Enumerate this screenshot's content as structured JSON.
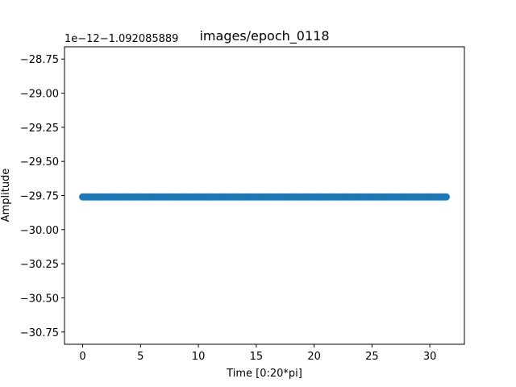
{
  "chart_data": {
    "type": "scatter",
    "title": "images/epoch_0118",
    "xlabel": "Time [0:20*pi]",
    "ylabel": "Amplitude",
    "offset_text": "1e−12−1.092085889",
    "xlim": [
      -1.571,
      32.987
    ],
    "ylim": [
      -30.84,
      -28.66
    ],
    "x_ticks": [
      0,
      5,
      10,
      15,
      20,
      25,
      30
    ],
    "x_tick_labels": [
      "0",
      "5",
      "10",
      "15",
      "20",
      "25",
      "30"
    ],
    "y_ticks": [
      -28.75,
      -29.0,
      -29.25,
      -29.5,
      -29.75,
      -30.0,
      -30.25,
      -30.5,
      -30.75
    ],
    "y_tick_labels": [
      "−28.75",
      "−29.00",
      "−29.25",
      "−29.50",
      "−29.75",
      "−30.00",
      "−30.25",
      "−30.50",
      "−30.75"
    ],
    "grid": false,
    "series": [
      {
        "color": "#1f77b4",
        "marker": "circle",
        "x_start": 0,
        "x_end": 31.416,
        "y": -29.76
      }
    ]
  }
}
